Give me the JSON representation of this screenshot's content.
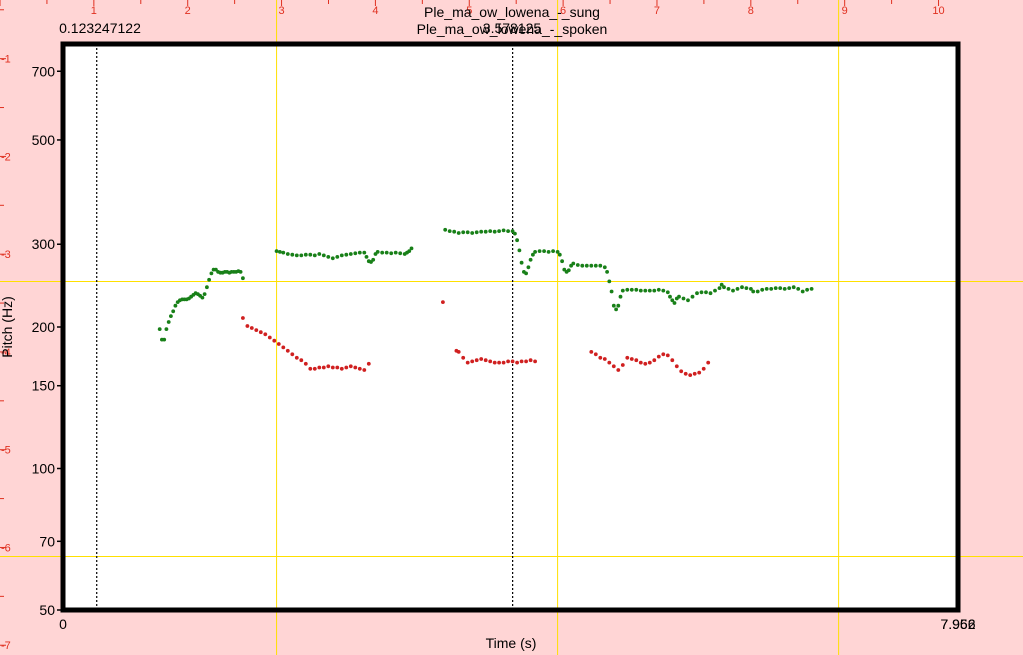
{
  "chart_data": {
    "type": "scatter",
    "titles": [
      "Ple_ma_ow_lowena_-_sung",
      "Ple_ma_ow_lowena_-_spoken"
    ],
    "cursor_labels": [
      "0.123247122",
      "3.578125"
    ],
    "right_end_labels": [
      "7.962",
      "7.956"
    ],
    "xlabel": "Time (s)",
    "ylabel": "Pitch (Hz)",
    "x_start_label": "0",
    "xlim": [
      0,
      7.962
    ],
    "ylim": [
      50,
      800
    ],
    "y_scale": "log",
    "y_ticks": [
      50,
      70,
      100,
      150,
      200,
      300,
      500,
      700
    ],
    "top_ruler": {
      "ticks": [
        1,
        2,
        3,
        4,
        5,
        6,
        7,
        8,
        9,
        10
      ],
      "range": [
        0,
        10.9
      ]
    },
    "left_ruler": {
      "ticks": [
        -1,
        -2,
        -3,
        -4,
        -5,
        -6,
        -7
      ],
      "range": [
        -0.4,
        -7.1
      ]
    },
    "cursors_x": [
      0.3,
      4.0
    ],
    "gridlines_x": [
      1.9,
      4.4,
      6.9
    ],
    "gridlines_y": [
      250,
      65
    ],
    "colors": {
      "background": "#ffd5d5",
      "plot": "#ffffff",
      "frame": "#000000",
      "grid": "#ffe000",
      "ruler": "#e03020",
      "sung": "#188018",
      "spoken": "#d02020"
    },
    "series": [
      {
        "name": "Ple_ma_ow_lowena_-_sung",
        "points": [
          [
            0.86,
            198
          ],
          [
            0.88,
            188
          ],
          [
            0.9,
            188
          ],
          [
            0.92,
            198
          ],
          [
            0.94,
            205
          ],
          [
            0.96,
            211
          ],
          [
            0.98,
            216
          ],
          [
            1.0,
            222
          ],
          [
            1.02,
            226
          ],
          [
            1.04,
            228
          ],
          [
            1.06,
            229
          ],
          [
            1.08,
            229
          ],
          [
            1.1,
            229
          ],
          [
            1.12,
            230
          ],
          [
            1.14,
            232
          ],
          [
            1.16,
            234
          ],
          [
            1.18,
            236
          ],
          [
            1.2,
            235
          ],
          [
            1.22,
            233
          ],
          [
            1.24,
            231
          ],
          [
            1.26,
            235
          ],
          [
            1.28,
            243
          ],
          [
            1.3,
            252
          ],
          [
            1.32,
            260
          ],
          [
            1.34,
            265
          ],
          [
            1.36,
            265
          ],
          [
            1.38,
            262
          ],
          [
            1.4,
            261
          ],
          [
            1.42,
            261
          ],
          [
            1.44,
            262
          ],
          [
            1.46,
            262
          ],
          [
            1.48,
            261
          ],
          [
            1.5,
            262
          ],
          [
            1.52,
            262
          ],
          [
            1.54,
            262
          ],
          [
            1.56,
            263
          ],
          [
            1.58,
            262
          ],
          [
            1.6,
            254
          ],
          [
            1.9,
            290
          ],
          [
            1.93,
            289
          ],
          [
            1.96,
            288
          ],
          [
            2.0,
            286
          ],
          [
            2.04,
            285
          ],
          [
            2.08,
            284
          ],
          [
            2.12,
            284
          ],
          [
            2.16,
            285
          ],
          [
            2.2,
            285
          ],
          [
            2.24,
            284
          ],
          [
            2.28,
            286
          ],
          [
            2.32,
            284
          ],
          [
            2.36,
            282
          ],
          [
            2.4,
            280
          ],
          [
            2.44,
            282
          ],
          [
            2.48,
            284
          ],
          [
            2.52,
            285
          ],
          [
            2.56,
            286
          ],
          [
            2.6,
            287
          ],
          [
            2.64,
            288
          ],
          [
            2.68,
            288
          ],
          [
            2.7,
            282
          ],
          [
            2.72,
            276
          ],
          [
            2.74,
            275
          ],
          [
            2.76,
            278
          ],
          [
            2.78,
            286
          ],
          [
            2.8,
            289
          ],
          [
            2.84,
            288
          ],
          [
            2.88,
            288
          ],
          [
            2.92,
            287
          ],
          [
            2.96,
            288
          ],
          [
            3.0,
            287
          ],
          [
            3.04,
            286
          ],
          [
            3.06,
            288
          ],
          [
            3.08,
            290
          ],
          [
            3.1,
            294
          ],
          [
            3.4,
            322
          ],
          [
            3.44,
            320
          ],
          [
            3.48,
            319
          ],
          [
            3.52,
            317
          ],
          [
            3.56,
            318
          ],
          [
            3.6,
            318
          ],
          [
            3.64,
            317
          ],
          [
            3.68,
            318
          ],
          [
            3.72,
            319
          ],
          [
            3.76,
            319
          ],
          [
            3.8,
            320
          ],
          [
            3.84,
            319
          ],
          [
            3.88,
            320
          ],
          [
            3.92,
            321
          ],
          [
            3.96,
            320
          ],
          [
            4.0,
            320
          ],
          [
            4.02,
            316
          ],
          [
            4.04,
            306
          ],
          [
            4.06,
            291
          ],
          [
            4.08,
            274
          ],
          [
            4.1,
            262
          ],
          [
            4.12,
            260
          ],
          [
            4.14,
            268
          ],
          [
            4.16,
            278
          ],
          [
            4.18,
            285
          ],
          [
            4.2,
            289
          ],
          [
            4.24,
            290
          ],
          [
            4.28,
            290
          ],
          [
            4.32,
            289
          ],
          [
            4.36,
            290
          ],
          [
            4.4,
            289
          ],
          [
            4.42,
            285
          ],
          [
            4.44,
            276
          ],
          [
            4.46,
            265
          ],
          [
            4.48,
            262
          ],
          [
            4.5,
            264
          ],
          [
            4.52,
            270
          ],
          [
            4.54,
            273
          ],
          [
            4.58,
            271
          ],
          [
            4.62,
            270
          ],
          [
            4.66,
            270
          ],
          [
            4.7,
            270
          ],
          [
            4.74,
            270
          ],
          [
            4.78,
            270
          ],
          [
            4.82,
            268
          ],
          [
            4.84,
            262
          ],
          [
            4.86,
            250
          ],
          [
            4.88,
            238
          ],
          [
            4.9,
            222
          ],
          [
            4.92,
            218
          ],
          [
            4.94,
            222
          ],
          [
            4.96,
            232
          ],
          [
            4.98,
            239
          ],
          [
            5.02,
            240
          ],
          [
            5.06,
            240
          ],
          [
            5.1,
            240
          ],
          [
            5.14,
            239
          ],
          [
            5.18,
            239
          ],
          [
            5.22,
            239
          ],
          [
            5.26,
            239
          ],
          [
            5.3,
            240
          ],
          [
            5.34,
            239
          ],
          [
            5.38,
            237
          ],
          [
            5.4,
            232
          ],
          [
            5.42,
            228
          ],
          [
            5.44,
            225
          ],
          [
            5.46,
            230
          ],
          [
            5.48,
            232
          ],
          [
            5.52,
            230
          ],
          [
            5.56,
            228
          ],
          [
            5.6,
            232
          ],
          [
            5.64,
            236
          ],
          [
            5.68,
            237
          ],
          [
            5.72,
            237
          ],
          [
            5.76,
            236
          ],
          [
            5.8,
            239
          ],
          [
            5.84,
            242
          ],
          [
            5.86,
            246
          ],
          [
            5.88,
            243
          ],
          [
            5.92,
            241
          ],
          [
            5.96,
            239
          ],
          [
            6.0,
            241
          ],
          [
            6.04,
            243
          ],
          [
            6.08,
            242
          ],
          [
            6.12,
            241
          ],
          [
            6.14,
            238
          ],
          [
            6.18,
            238
          ],
          [
            6.22,
            240
          ],
          [
            6.26,
            241
          ],
          [
            6.3,
            241
          ],
          [
            6.34,
            242
          ],
          [
            6.38,
            242
          ],
          [
            6.42,
            241
          ],
          [
            6.46,
            242
          ],
          [
            6.5,
            243
          ],
          [
            6.54,
            241
          ],
          [
            6.58,
            238
          ],
          [
            6.62,
            240
          ],
          [
            6.66,
            241
          ]
        ]
      },
      {
        "name": "Ple_ma_ow_lowena_-_spoken",
        "points": [
          [
            1.6,
            209
          ],
          [
            1.64,
            201
          ],
          [
            1.68,
            199
          ],
          [
            1.72,
            197
          ],
          [
            1.76,
            195
          ],
          [
            1.8,
            193
          ],
          [
            1.84,
            190
          ],
          [
            1.88,
            187
          ],
          [
            1.92,
            184
          ],
          [
            1.96,
            181
          ],
          [
            2.0,
            178
          ],
          [
            2.04,
            175
          ],
          [
            2.08,
            172
          ],
          [
            2.12,
            170
          ],
          [
            2.16,
            167
          ],
          [
            2.2,
            163
          ],
          [
            2.24,
            163
          ],
          [
            2.28,
            164
          ],
          [
            2.32,
            164
          ],
          [
            2.36,
            165
          ],
          [
            2.4,
            164
          ],
          [
            2.44,
            164
          ],
          [
            2.48,
            163
          ],
          [
            2.52,
            164
          ],
          [
            2.56,
            165
          ],
          [
            2.6,
            164
          ],
          [
            2.64,
            163
          ],
          [
            2.68,
            162
          ],
          [
            2.72,
            167
          ],
          [
            3.38,
            226
          ],
          [
            3.5,
            178
          ],
          [
            3.52,
            177
          ],
          [
            3.56,
            172
          ],
          [
            3.6,
            168
          ],
          [
            3.64,
            169
          ],
          [
            3.68,
            170
          ],
          [
            3.72,
            171
          ],
          [
            3.76,
            170
          ],
          [
            3.8,
            169
          ],
          [
            3.84,
            168
          ],
          [
            3.88,
            168
          ],
          [
            3.92,
            168
          ],
          [
            3.96,
            169
          ],
          [
            4.0,
            169
          ],
          [
            4.04,
            168
          ],
          [
            4.08,
            169
          ],
          [
            4.12,
            169
          ],
          [
            4.16,
            170
          ],
          [
            4.2,
            169
          ],
          [
            4.7,
            177
          ],
          [
            4.74,
            175
          ],
          [
            4.78,
            172
          ],
          [
            4.82,
            171
          ],
          [
            4.86,
            168
          ],
          [
            4.9,
            165
          ],
          [
            4.94,
            162
          ],
          [
            4.98,
            166
          ],
          [
            5.02,
            172
          ],
          [
            5.06,
            171
          ],
          [
            5.1,
            170
          ],
          [
            5.14,
            168
          ],
          [
            5.18,
            167
          ],
          [
            5.22,
            168
          ],
          [
            5.26,
            170
          ],
          [
            5.3,
            173
          ],
          [
            5.34,
            175
          ],
          [
            5.38,
            174
          ],
          [
            5.42,
            170
          ],
          [
            5.46,
            165
          ],
          [
            5.5,
            161
          ],
          [
            5.54,
            159
          ],
          [
            5.58,
            158
          ],
          [
            5.62,
            159
          ],
          [
            5.66,
            160
          ],
          [
            5.7,
            163
          ],
          [
            5.74,
            168
          ]
        ]
      }
    ]
  }
}
